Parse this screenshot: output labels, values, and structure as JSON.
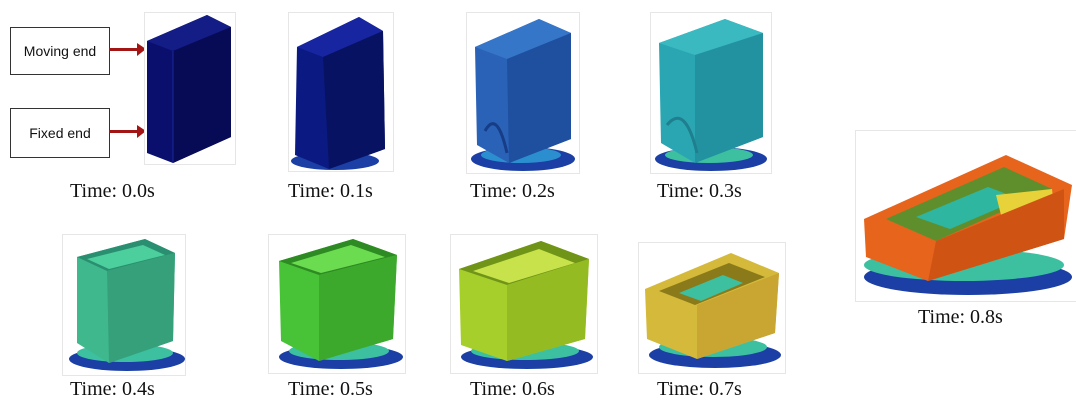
{
  "labels": {
    "moving_end": "Moving end",
    "fixed_end": "Fixed end"
  },
  "frames": [
    {
      "caption": "Time: 0.0s",
      "color": "#0a0f6e"
    },
    {
      "caption": "Time: 0.1s",
      "color": "#0b1a82"
    },
    {
      "caption": "Time: 0.2s",
      "color": "#2a62b8"
    },
    {
      "caption": "Time: 0.3s",
      "color": "#2aa6b3"
    },
    {
      "caption": "Time: 0.4s",
      "color": "#3fb88d"
    },
    {
      "caption": "Time: 0.5s",
      "color": "#48c236"
    },
    {
      "caption": "Time: 0.6s",
      "color": "#a6cf2b"
    },
    {
      "caption": "Time: 0.7s",
      "color": "#d4b93a"
    },
    {
      "caption": "Time: 0.8s",
      "color": "#e7641c"
    }
  ],
  "base_colors": [
    "#1b3fa5",
    "#2b8fcf",
    "#3cc0a0"
  ]
}
